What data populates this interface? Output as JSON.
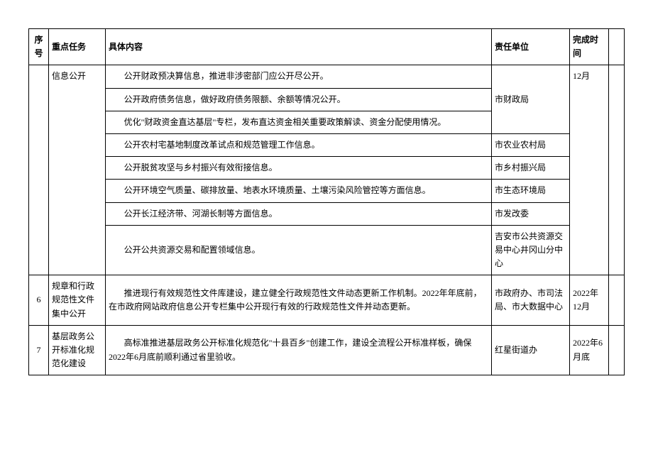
{
  "headers": {
    "num": "序号",
    "task": "重点任务",
    "content": "具体内容",
    "dept": "责任单位",
    "time": "完成时间"
  },
  "section5": {
    "task": "信息公开",
    "time": "12月",
    "rows": [
      {
        "content": "公开财政预决算信息，推进非涉密部门应公开尽公开。",
        "dept": "市财政局"
      },
      {
        "content": "公开政府债务信息，做好政府债务限额、余额等情况公开。",
        "dept": ""
      },
      {
        "content": "优化\"财政资金直达基层\"专栏，发布直达资金相关重要政策解读、资金分配使用情况。",
        "dept": ""
      },
      {
        "content": "公开农村宅基地制度改革试点和规范管理工作信息。",
        "dept": "市农业农村局"
      },
      {
        "content": "公开脱贫攻坚与乡村振兴有效衔接信息。",
        "dept": "市乡村振兴局"
      },
      {
        "content": "公开环境空气质量、碳排放量、地表水环境质量、土壤污染风险管控等方面信息。",
        "dept": "市生态环境局"
      },
      {
        "content": "公开长江经济带、河湖长制等方面信息。",
        "dept": "市发改委"
      },
      {
        "content": "公开公共资源交易和配置领域信息。",
        "dept": "吉安市公共资源交易中心井冈山分中心"
      }
    ]
  },
  "section6": {
    "num": "6",
    "task": "规章和行政规范性文件集中公开",
    "content": "推进现行有效规范性文件库建设，建立健全行政规范性文件动态更新工作机制。2022年年底前，在市政府网站政府信息公开专栏集中公开现行有效的行政规范性文件并动态更新。",
    "dept": "市政府办、市司法局、市大数据中心",
    "time": "2022年12月"
  },
  "section7": {
    "num": "7",
    "task": "基层政务公开标准化规范化建设",
    "content": "高标准推进基层政务公开标准化规范化\"十县百乡\"创建工作，建设全流程公开标准样板，确保2022年6月底前顺利通过省里验收。",
    "dept": "红星街道办",
    "time": "2022年6月底"
  }
}
